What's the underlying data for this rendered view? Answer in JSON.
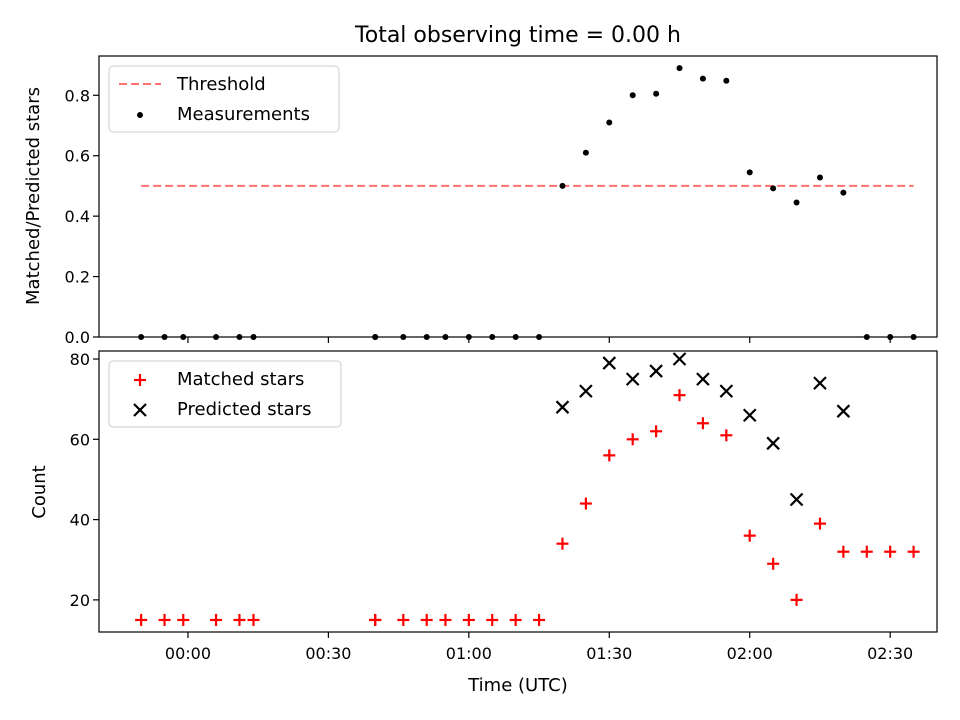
{
  "chart_data": [
    {
      "type": "scatter",
      "title": "Total observing time = 0.00 h",
      "ylabel": "Matched/Predicted stars",
      "xlabel": "",
      "ylim": [
        0,
        0.93
      ],
      "yticks": [
        "0.0",
        "0.2",
        "0.4",
        "0.6",
        "0.8"
      ],
      "legend": "top-left",
      "threshold": {
        "name": "Threshold",
        "value": 0.5,
        "x_range": [
          "23:50",
          "02:35"
        ],
        "color": "#ff7070"
      },
      "series": [
        {
          "name": "Measurements",
          "color": "#000000",
          "x": [
            "23:50",
            "23:55",
            "23:59",
            "00:06",
            "00:11",
            "00:14",
            "00:40",
            "00:40",
            "00:46",
            "00:51",
            "00:55",
            "01:00",
            "01:05",
            "01:10",
            "01:15",
            "01:20",
            "01:25",
            "01:30",
            "01:35",
            "01:40",
            "01:45",
            "01:50",
            "01:55",
            "02:00",
            "02:05",
            "02:10",
            "02:15",
            "02:20",
            "02:25",
            "02:30",
            "02:35"
          ],
          "y": [
            0,
            0,
            0,
            0,
            0,
            0,
            0,
            0,
            0,
            0,
            0,
            0,
            0,
            0,
            0,
            0.5,
            0.61,
            0.71,
            0.8,
            0.805,
            0.89,
            0.855,
            0.848,
            0.545,
            0.492,
            0.445,
            0.528,
            0.478,
            0,
            0,
            0
          ]
        }
      ]
    },
    {
      "type": "scatter",
      "xlabel": "Time (UTC)",
      "ylabel": "Count",
      "ylim": [
        12,
        82
      ],
      "yticks": [
        "20",
        "40",
        "60",
        "80"
      ],
      "xticks": [
        "00:00",
        "00:30",
        "01:00",
        "01:30",
        "02:00",
        "02:30"
      ],
      "xlim": [
        "23:41",
        "02:40"
      ],
      "legend": "top-left",
      "series": [
        {
          "name": "Matched stars",
          "color": "#ff0000",
          "marker": "plus",
          "x": [
            "23:50",
            "23:55",
            "23:59",
            "00:06",
            "00:11",
            "00:14",
            "00:40",
            "00:40",
            "00:46",
            "00:51",
            "00:55",
            "01:00",
            "01:05",
            "01:10",
            "01:15",
            "01:20",
            "01:25",
            "01:30",
            "01:35",
            "01:40",
            "01:45",
            "01:50",
            "01:55",
            "02:00",
            "02:05",
            "02:10",
            "02:15",
            "02:20",
            "02:25",
            "02:30",
            "02:35"
          ],
          "y": [
            15,
            15,
            15,
            15,
            15,
            15,
            15,
            15,
            15,
            15,
            15,
            15,
            15,
            15,
            15,
            34,
            44,
            56,
            60,
            62,
            71,
            64,
            61,
            36,
            29,
            20,
            39,
            32,
            32,
            32,
            32
          ]
        },
        {
          "name": "Predicted stars",
          "color": "#000000",
          "marker": "x",
          "x": [
            "01:20",
            "01:25",
            "01:30",
            "01:35",
            "01:40",
            "01:45",
            "01:50",
            "01:55",
            "02:00",
            "02:05",
            "02:10",
            "02:15",
            "02:20"
          ],
          "y": [
            68,
            72,
            79,
            75,
            77,
            80,
            75,
            72,
            66,
            59,
            45,
            74,
            67
          ]
        }
      ]
    }
  ]
}
